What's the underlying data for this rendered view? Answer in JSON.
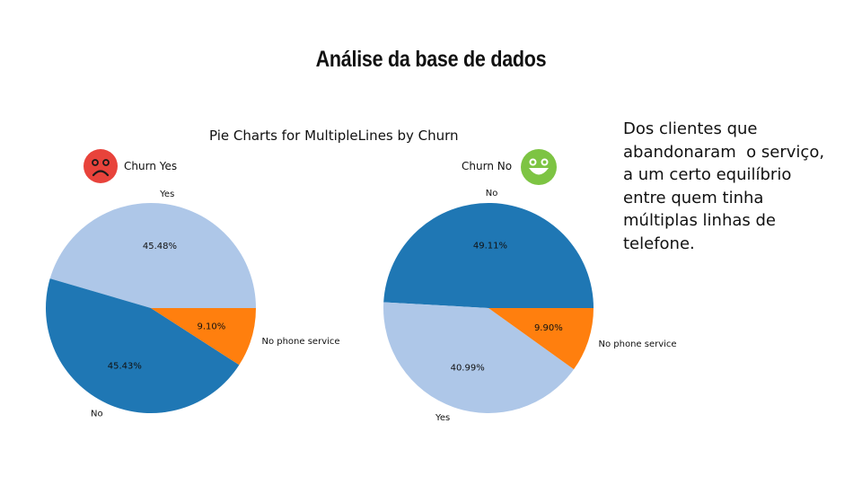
{
  "slide": {
    "title": "Análise da base de dados",
    "side_text": [
      "Dos clientes que",
      "abandonaram  o serviço,",
      "a um certo equilíbrio",
      "entre quem tinha",
      "múltiplas linhas de",
      "telefone."
    ]
  },
  "colors": {
    "No": "#1f77b4",
    "Yes": "#aec7e8",
    "No phone service": "#ff7f0e",
    "sad_icon": "#e8433b",
    "happy_icon": "#7dc443"
  },
  "chart_data": [
    {
      "type": "pie",
      "title": "Pie Charts for MultipleLines by Churn",
      "subtitle": "Churn Yes",
      "icon": "sad-face-icon",
      "slices": [
        {
          "label": "Yes",
          "value": 45.48,
          "pct_text": "45.48%"
        },
        {
          "label": "No",
          "value": 45.43,
          "pct_text": "45.43%"
        },
        {
          "label": "No phone service",
          "value": 9.1,
          "pct_text": "9.10%"
        }
      ]
    },
    {
      "type": "pie",
      "subtitle": "Churn No",
      "icon": "happy-face-icon",
      "slices": [
        {
          "label": "No",
          "value": 49.11,
          "pct_text": "49.11%"
        },
        {
          "label": "Yes",
          "value": 40.99,
          "pct_text": "40.99%"
        },
        {
          "label": "No phone service",
          "value": 9.9,
          "pct_text": "9.90%"
        }
      ]
    }
  ]
}
